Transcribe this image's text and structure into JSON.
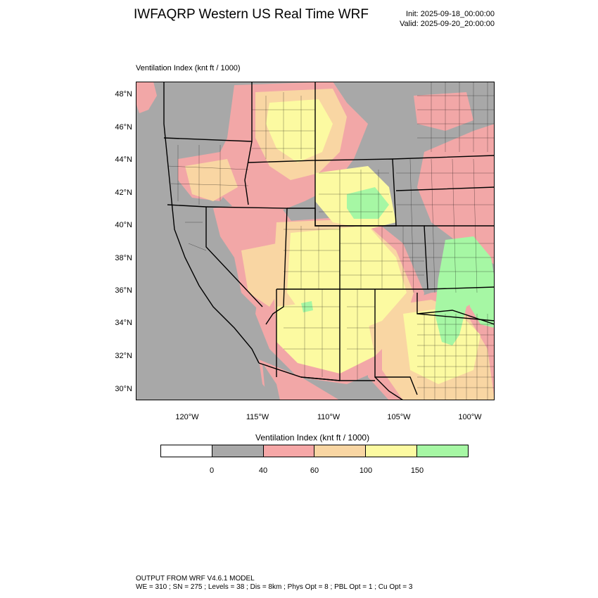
{
  "title": "IWFAQRP Western US Real Time WRF",
  "init": "Init: 2025-09-18_00:00:00",
  "valid": "Valid: 2025-09-20_20:00:00",
  "field_title": "Ventilation Index   (knt ft / 1000)",
  "colorbar": {
    "title": "Ventilation Index  (knt ft / 1000)",
    "colors": [
      "#ffffff",
      "#a8a8a8",
      "#f6a7a7",
      "#f9d6a3",
      "#fcfaa1",
      "#a6f7a4"
    ],
    "tick_labels": [
      "0",
      "40",
      "60",
      "100",
      "150"
    ]
  },
  "lat_labels": [
    "48°N",
    "46°N",
    "44°N",
    "42°N",
    "40°N",
    "38°N",
    "36°N",
    "34°N",
    "32°N",
    "30°N"
  ],
  "lon_labels": [
    "120°W",
    "115°W",
    "110°W",
    "105°W",
    "100°W"
  ],
  "footer": {
    "line1": "OUTPUT FROM WRF V4.6.1 MODEL",
    "line2": "WE = 310 ; SN = 275 ; Levels = 38 ; Dis = 8km ; Phys Opt = 8 ; PBL Opt = 1 ; Cu Opt = 3"
  }
}
